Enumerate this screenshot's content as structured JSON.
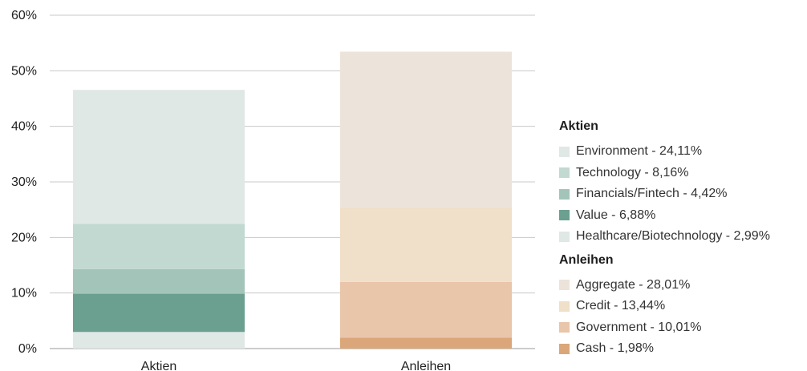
{
  "chart_data": {
    "type": "bar",
    "stacked": true,
    "categories": [
      "Aktien",
      "Anleihen"
    ],
    "ylim": [
      0,
      60
    ],
    "yticks": [
      "0%",
      "10%",
      "20%",
      "30%",
      "40%",
      "50%",
      "60%"
    ],
    "grid": true,
    "legend_position": "right",
    "series": [
      {
        "name": "Healthcare/Biotechnology - 2,99%",
        "group": "Aktien",
        "category": "Aktien",
        "value": 2.99,
        "color": "#dfe8e5"
      },
      {
        "name": "Value - 6,88%",
        "group": "Aktien",
        "category": "Aktien",
        "value": 6.88,
        "color": "#6b9f90"
      },
      {
        "name": "Financials/Fintech - 4,42%",
        "group": "Aktien",
        "category": "Aktien",
        "value": 4.42,
        "color": "#a3c5b9"
      },
      {
        "name": "Technology - 8,16%",
        "group": "Aktien",
        "category": "Aktien",
        "value": 8.16,
        "color": "#c2d9d1"
      },
      {
        "name": "Environment - 24,11%",
        "group": "Aktien",
        "category": "Aktien",
        "value": 24.11,
        "color": "#dfe8e5"
      },
      {
        "name": "Cash - 1,98%",
        "group": "Anleihen",
        "category": "Anleihen",
        "value": 1.98,
        "color": "#dba679"
      },
      {
        "name": "Government - 10,01%",
        "group": "Anleihen",
        "category": "Anleihen",
        "value": 10.01,
        "color": "#e9c5aa"
      },
      {
        "name": "Credit - 13,44%",
        "group": "Anleihen",
        "category": "Anleihen",
        "value": 13.44,
        "color": "#f0dfc9"
      },
      {
        "name": "Aggregate - 28,01%",
        "group": "Anleihen",
        "category": "Anleihen",
        "value": 28.01,
        "color": "#ece3da"
      }
    ]
  },
  "legend": {
    "groups": [
      {
        "title": "Aktien",
        "items": [
          {
            "label": "Environment - 24,11%",
            "color": "#dfe8e5"
          },
          {
            "label": "Technology - 8,16%",
            "color": "#c2d9d1"
          },
          {
            "label": "Financials/Fintech - 4,42%",
            "color": "#a3c5b9"
          },
          {
            "label": "Value - 6,88%",
            "color": "#6b9f90"
          },
          {
            "label": "Healthcare/Biotechnology - 2,99%",
            "color": "#dfe8e5"
          }
        ]
      },
      {
        "title": "Anleihen",
        "items": [
          {
            "label": "Aggregate - 28,01%",
            "color": "#ece3da"
          },
          {
            "label": "Credit - 13,44%",
            "color": "#f0dfc9"
          },
          {
            "label": "Government - 10,01%",
            "color": "#e9c5aa"
          },
          {
            "label": "Cash - 1,98%",
            "color": "#dba679"
          }
        ]
      }
    ]
  }
}
